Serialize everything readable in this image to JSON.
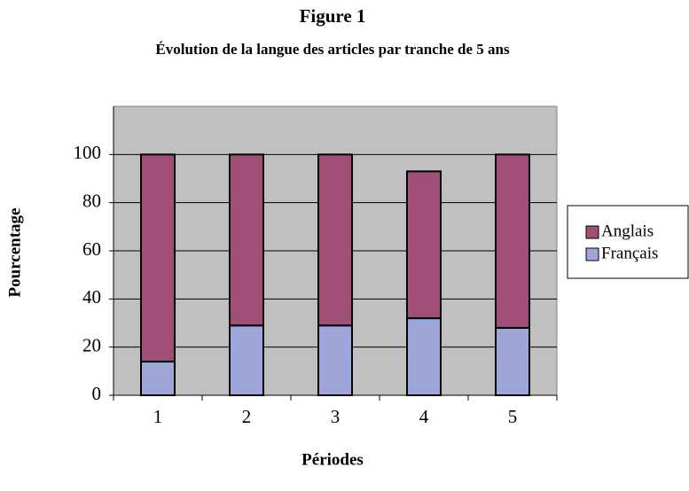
{
  "chart_data": {
    "type": "stacked_bar",
    "title": "Figure 1",
    "subtitle": "Évolution de la langue des articles par tranche de 5 ans",
    "x_label": "Périodes",
    "y_label": "Pourcentage",
    "categories": [
      "1",
      "2",
      "3",
      "4",
      "5"
    ],
    "series": [
      {
        "name": "Français",
        "color": "#9ea6d9",
        "values": [
          14,
          29,
          29,
          32,
          28
        ]
      },
      {
        "name": "Anglais",
        "color": "#9f4f78",
        "values": [
          86,
          71,
          71,
          61,
          72
        ]
      }
    ],
    "ylim": [
      0,
      120
    ],
    "yticks": [
      0,
      20,
      40,
      60,
      80,
      100
    ],
    "grid": true
  }
}
